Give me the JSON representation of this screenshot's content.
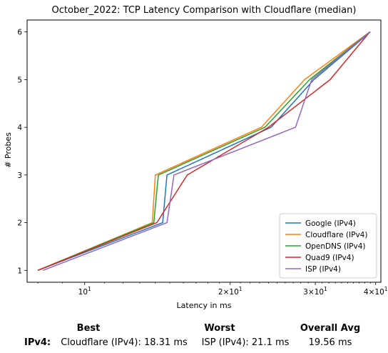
{
  "chart_data": {
    "type": "line",
    "title": "October_2022: TCP Latency Comparison with Cloudflare (median)",
    "xlabel": "Latency in ms",
    "ylabel": "# Probes",
    "xscale": "log",
    "xlim": [
      7.6,
      41.0
    ],
    "ylim": [
      0.75,
      6.25
    ],
    "x_ticks": [
      {
        "value": 10,
        "label": "10^1"
      },
      {
        "value": 20,
        "label": "2×10^1"
      },
      {
        "value": 30,
        "label": "3×10^1"
      },
      {
        "value": 40,
        "label": "4×10^1"
      }
    ],
    "y_ticks": [
      1,
      2,
      3,
      4,
      5,
      6
    ],
    "grid": false,
    "legend_position": "lower-right",
    "series": [
      {
        "name": "Google (IPv4)",
        "color": "#1f77b4",
        "x": [
          8.0,
          14.5,
          14.8,
          24.3,
          29.8,
          39.0
        ],
        "y": [
          1,
          2,
          3,
          4,
          5,
          6
        ]
      },
      {
        "name": "Cloudflare (IPv4)",
        "color": "#ff7f0e",
        "x": [
          8.0,
          13.8,
          14.0,
          23.2,
          28.5,
          38.9
        ],
        "y": [
          1,
          2,
          3,
          4,
          5,
          6
        ]
      },
      {
        "name": "OpenDNS (IPv4)",
        "color": "#2ca02c",
        "x": [
          8.0,
          13.9,
          14.2,
          23.6,
          29.2,
          38.9
        ],
        "y": [
          1,
          2,
          3,
          4,
          5,
          6
        ]
      },
      {
        "name": "Quad9 (IPv4)",
        "color": "#d62728",
        "x": [
          8.0,
          14.1,
          16.3,
          24.0,
          32.2,
          38.9
        ],
        "y": [
          1,
          2,
          3,
          4,
          5,
          6
        ]
      },
      {
        "name": "ISP (IPv4)",
        "color": "#9467bd",
        "x": [
          8.2,
          14.8,
          15.3,
          27.3,
          29.5,
          38.9
        ],
        "y": [
          1,
          2,
          3,
          4,
          5,
          6
        ]
      }
    ]
  },
  "summary": {
    "headers": {
      "best": "Best",
      "worst": "Worst",
      "overall": "Overall Avg"
    },
    "row_label": "IPv4:",
    "best": "Cloudflare (IPv4): 18.31 ms",
    "worst": "ISP (IPv4): 21.1 ms",
    "overall": "19.56 ms"
  }
}
